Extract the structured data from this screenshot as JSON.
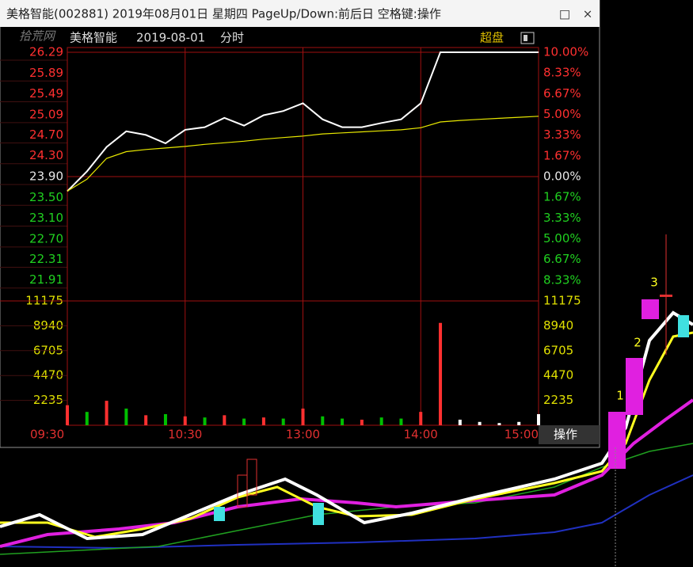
{
  "window": {
    "title": "美格智能(002881) 2019年08月01日 星期四 PageUp/Down:前后日 空格键:操作",
    "buttons": [
      "□",
      "×"
    ]
  },
  "watermark": "拾荒网",
  "header": {
    "name": "美格智能",
    "date": "2019-08-01",
    "mode": "分时",
    "button": "超盘"
  },
  "footer_button": "操作",
  "kline_labels": [
    "1",
    "2",
    "3"
  ],
  "chart_data": {
    "type": "line",
    "categories": [
      "09:30",
      null,
      null,
      null,
      null,
      null,
      "10:30",
      null,
      null,
      null,
      null,
      null,
      "13:00",
      null,
      null,
      null,
      null,
      null,
      "14:00",
      null,
      null,
      null,
      null,
      null,
      "15:00"
    ],
    "ylim": [
      21.51,
      26.29
    ],
    "yticks": [
      26.29,
      25.89,
      25.49,
      25.09,
      {
        "value": 24.7,
        "label": "24.70"
      },
      {
        "value": 24.3,
        "label": "24.30"
      },
      {
        "value": 23.9,
        "label": "23.90"
      },
      {
        "value": 23.5,
        "label": "23.50"
      },
      {
        "value": 23.1,
        "label": "23.10"
      },
      {
        "value": 22.7,
        "label": "22.70"
      },
      22.31,
      21.91
    ],
    "y2lim": [
      -10,
      10
    ],
    "y2ticks": [
      {
        "value": 10,
        "label": "10.00%"
      },
      {
        "value": 8.33,
        "label": "8.33%"
      },
      {
        "value": 6.67,
        "label": "6.67%"
      },
      {
        "value": 5,
        "label": "5.00%"
      },
      {
        "value": 3.33,
        "label": "3.33%"
      },
      {
        "value": 1.67,
        "label": "1.67%"
      },
      {
        "value": 0,
        "label": "0.00%"
      },
      {
        "value": -1.67,
        "label": "1.67%"
      },
      {
        "value": -3.33,
        "label": "3.33%"
      },
      {
        "value": -5,
        "label": "5.00%"
      },
      {
        "value": -6.67,
        "label": "6.67%"
      },
      {
        "value": -8.33,
        "label": "8.33%"
      }
    ],
    "series": [
      {
        "color": "#ffffff",
        "values": [
          23.62,
          24.0,
          24.47,
          24.77,
          24.7,
          24.54,
          24.8,
          24.85,
          25.03,
          24.88,
          25.08,
          25.16,
          25.31,
          25.0,
          24.85,
          24.85,
          24.93,
          25.0,
          25.31,
          26.29,
          26.29,
          26.29,
          26.29,
          26.29,
          26.29
        ]
      },
      {
        "color": "#e8e800",
        "values": [
          23.62,
          23.85,
          24.25,
          24.38,
          24.42,
          24.45,
          24.48,
          24.52,
          24.55,
          24.58,
          24.62,
          24.65,
          24.68,
          24.72,
          24.74,
          24.76,
          24.78,
          24.8,
          24.84,
          24.95,
          24.98,
          25.0,
          25.02,
          25.04,
          25.06
        ]
      }
    ],
    "volume": {
      "ylim": [
        0,
        11175
      ],
      "yticks": [
        11175,
        8940,
        6705,
        4470,
        2235
      ],
      "values": [
        1800,
        1200,
        2200,
        1500,
        900,
        1000,
        800,
        700,
        900,
        600,
        700,
        600,
        1500,
        800,
        600,
        500,
        700,
        600,
        1200,
        9200,
        500,
        300,
        200,
        300,
        1000
      ],
      "colors": [
        "#ff3030",
        "#00c000",
        "#ff3030",
        "#00c000",
        "#ff3030",
        "#00c000",
        "#ff3030",
        "#00c000",
        "#ff3030",
        "#00c000",
        "#ff3030",
        "#00c000",
        "#ff3030",
        "#00c000",
        "#00c000",
        "#ff3030",
        "#00c000",
        "#00c000",
        "#ff3030",
        "#ff3030",
        "#ffffff",
        "#ffffff",
        "#ffffff",
        "#ffffff",
        "#ffffff"
      ]
    }
  }
}
